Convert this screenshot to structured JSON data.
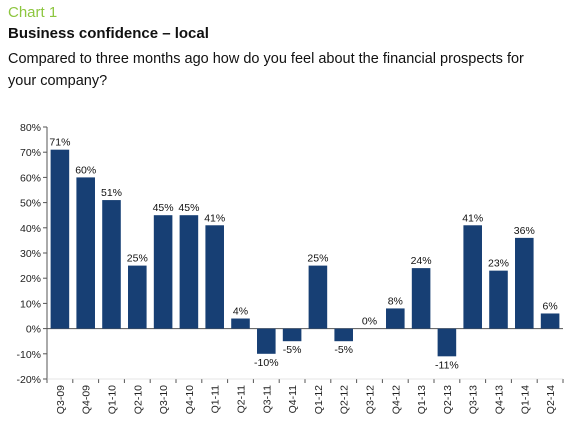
{
  "header": {
    "chart_label": "Chart 1",
    "title": "Business confidence – local",
    "subtitle": "Compared to three months ago how do you feel about the financial prospects for your company?"
  },
  "colors": {
    "bar": "#173f74",
    "label_accent": "#8dc63f",
    "axis": "#555555"
  },
  "chart_data": {
    "type": "bar",
    "title": "Business confidence – local",
    "xlabel": "",
    "ylabel": "",
    "ylim": [
      -20,
      80
    ],
    "yticks": [
      -20,
      -10,
      0,
      10,
      20,
      30,
      40,
      50,
      60,
      70,
      80
    ],
    "ytick_suffix": "%",
    "grid": false,
    "categories": [
      "Q3-09",
      "Q4-09",
      "Q1-10",
      "Q2-10",
      "Q3-10",
      "Q4-10",
      "Q1-11",
      "Q2-11",
      "Q3-11",
      "Q4-11",
      "Q1-12",
      "Q2-12",
      "Q3-12",
      "Q4-12",
      "Q1-13",
      "Q2-13",
      "Q3-13",
      "Q4-13",
      "Q1-14",
      "Q2-14"
    ],
    "values": [
      71,
      60,
      51,
      25,
      45,
      45,
      41,
      4,
      -10,
      -5,
      25,
      -5,
      0,
      8,
      24,
      -11,
      41,
      23,
      36,
      6
    ],
    "data_labels": [
      "71%",
      "60%",
      "51%",
      "25%",
      "45%",
      "45%",
      "41%",
      "4%",
      "-10%",
      "-5%",
      "25%",
      "-5%",
      "0%",
      "8%",
      "24%",
      "-11%",
      "41%",
      "23%",
      "36%",
      "6%"
    ]
  }
}
